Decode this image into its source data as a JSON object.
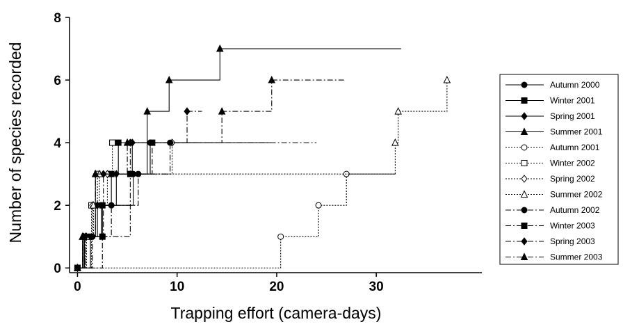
{
  "chart_data": {
    "type": "step",
    "xlabel": "Trapping effort (camera-days)",
    "ylabel": "Number of species recorded",
    "xlim": [
      -0.8,
      40.6
    ],
    "ylim": [
      -0.15,
      8
    ],
    "xticks": [
      0,
      10,
      20,
      30
    ],
    "yticks": [
      0,
      2,
      4,
      6,
      8
    ],
    "series": [
      {
        "name": "Autumn 2000",
        "color": "#000000",
        "marker": "circle",
        "filled": true,
        "dash": "solid",
        "x": [
          0,
          0.7,
          2.4,
          5.6,
          7.3
        ],
        "values": [
          0,
          1,
          2,
          3,
          4
        ],
        "effort": 19.4
      },
      {
        "name": "Winter 2001",
        "color": "#000000",
        "marker": "square",
        "filled": true,
        "dash": "solid",
        "x": [
          0,
          1.3,
          2.5,
          3.4,
          4.1
        ],
        "values": [
          0,
          1,
          2,
          3,
          4
        ],
        "effort": 6.6
      },
      {
        "name": "Spring 2001",
        "color": "#000000",
        "marker": "diamond",
        "filled": true,
        "dash": "solid",
        "x": [
          0,
          0.6,
          2.0,
          3.9,
          5.5
        ],
        "values": [
          0,
          1,
          2,
          3,
          4
        ],
        "effort": 12
      },
      {
        "name": "Summer 2001",
        "color": "#000000",
        "marker": "triangle",
        "filled": true,
        "dash": "solid",
        "x": [
          0,
          0.5,
          1.8,
          7.0,
          9.2,
          14.3
        ],
        "values": [
          0,
          1,
          3,
          5,
          6,
          7
        ],
        "effort": 32.5
      },
      {
        "name": "Autumn 2001",
        "color": "#000000",
        "marker": "circle",
        "filled": false,
        "dash": "dotted",
        "x": [
          0,
          20.4,
          24.2,
          27
        ],
        "values": [
          0,
          1,
          2,
          3
        ],
        "effort": 31.9
      },
      {
        "name": "Winter 2002",
        "color": "#000000",
        "marker": "square",
        "filled": false,
        "dash": "dotted",
        "x": [
          0,
          1.4,
          2.0,
          3.5
        ],
        "values": [
          0,
          2,
          3,
          4
        ],
        "effort": 5.5
      },
      {
        "name": "Spring 2002",
        "color": "#000000",
        "marker": "diamond",
        "filled": false,
        "dash": "dotted",
        "x": [
          0,
          0.8,
          1.5,
          3.0,
          9.5
        ],
        "values": [
          0,
          1,
          2,
          3,
          4
        ],
        "effort": 9.5
      },
      {
        "name": "Summer 2002",
        "color": "#000000",
        "marker": "triangle",
        "filled": false,
        "dash": "dotted",
        "x": [
          0,
          0.9,
          1.6,
          2.2,
          31.9,
          32.2,
          37.1
        ],
        "values": [
          0,
          1,
          2,
          3,
          4,
          5,
          6
        ],
        "effort": 37.1
      },
      {
        "name": "Autumn 2002",
        "color": "#000000",
        "marker": "circle",
        "filled": true,
        "dash": "dashdot",
        "x": [
          0,
          1.5,
          3.4,
          6.1,
          9.3
        ],
        "values": [
          0,
          1,
          2,
          3,
          4
        ],
        "effort": 24
      },
      {
        "name": "Winter 2003",
        "color": "#000000",
        "marker": "square",
        "filled": true,
        "dash": "dashdot",
        "x": [
          0,
          2.5,
          5.3,
          7.5
        ],
        "values": [
          0,
          1,
          3,
          4
        ],
        "effort": 9.5
      },
      {
        "name": "Spring 2003",
        "color": "#000000",
        "marker": "diamond",
        "filled": true,
        "dash": "dashdot",
        "x": [
          0,
          0.8,
          2.6,
          5.3,
          11
        ],
        "values": [
          0,
          1,
          3,
          4,
          5
        ],
        "effort": 12.5
      },
      {
        "name": "Summer 2003",
        "color": "#000000",
        "marker": "triangle",
        "filled": true,
        "dash": "dashdot",
        "x": [
          0,
          0.5,
          1.8,
          5.0,
          14.5,
          19.5
        ],
        "values": [
          0,
          1,
          3,
          4,
          5,
          6
        ],
        "effort": 26.9
      }
    ]
  }
}
